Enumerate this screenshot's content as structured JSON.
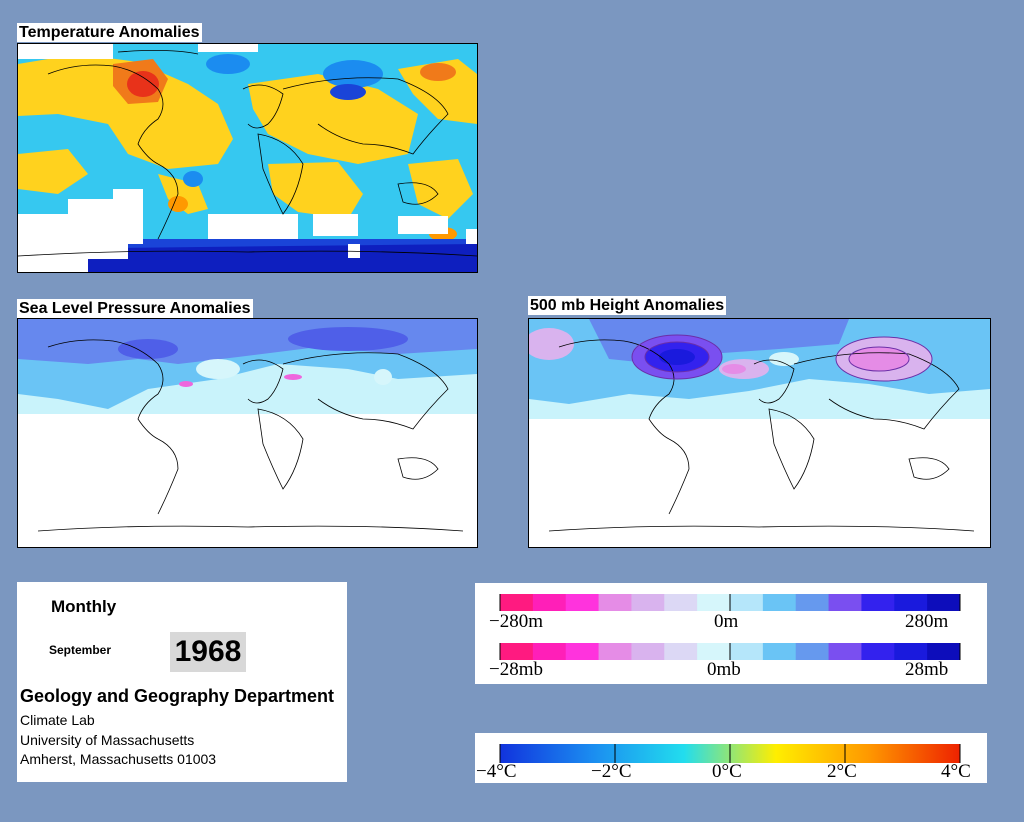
{
  "panels": {
    "temperature": {
      "title": "Temperature Anomalies"
    },
    "slp": {
      "title": "Sea Level Pressure Anomalies"
    },
    "height": {
      "title": "500 mb Height Anomalies"
    }
  },
  "info": {
    "period": "Monthly",
    "month": "September",
    "year": "1968",
    "department": "Geology and Geography Department",
    "lab": "Climate Lab",
    "university": "University of Massachusetts",
    "address": "Amherst, Massachusetts 01003"
  },
  "legends": {
    "height_legend": {
      "labels": [
        "−280m",
        "0m",
        "280m"
      ],
      "colors": [
        "#ff1a80",
        "#ff1fb8",
        "#ff33dd",
        "#e58ce6",
        "#d9b3ee",
        "#dcd8f5",
        "#d6f6fb",
        "#b5e6fa",
        "#6ac4f5",
        "#6699ee",
        "#7a4ff0",
        "#3322ee",
        "#1a1add",
        "#0d0dbb"
      ]
    },
    "slp_legend": {
      "labels": [
        "−28mb",
        "0mb",
        "28mb"
      ],
      "colors": [
        "#ff1a80",
        "#ff1fb8",
        "#ff33dd",
        "#e58ce6",
        "#d9b3ee",
        "#dcd8f5",
        "#d6f6fb",
        "#b5e6fa",
        "#6ac4f5",
        "#6699ee",
        "#7a4ff0",
        "#3322ee",
        "#1a1add",
        "#0d0dbb"
      ]
    },
    "temp_legend": {
      "labels": [
        "−4°C",
        "−2°C",
        "0°C",
        "2°C",
        "4°C"
      ],
      "colors": [
        "#1133dd",
        "#1b8cf0",
        "#22ddee",
        "#ffee00",
        "#ff9900",
        "#ee2200"
      ]
    }
  },
  "colors": {
    "background": "#7b97c0",
    "temp_warm": "#ffd21e",
    "temp_cool": "#36c8f0",
    "temp_cold": "#1a44d8",
    "temp_hot": "#e8321a",
    "pressure_low": "#6688ee",
    "pressure_neutral": "#c9f3fb",
    "pressure_high": "#ee66dd"
  }
}
